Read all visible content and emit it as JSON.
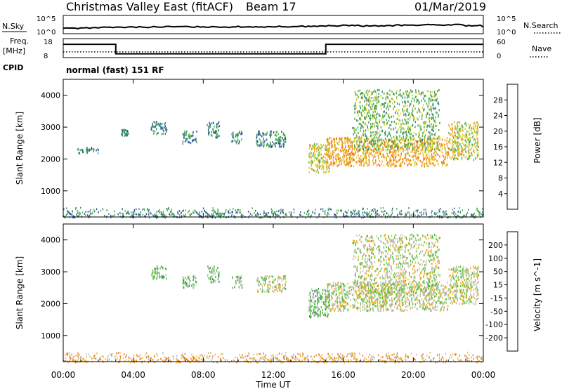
{
  "header": {
    "radar": "Christmas Valley East (fitACF)",
    "beam": "Beam 17",
    "date": "01/Mar/2019"
  },
  "mode_label": "normal (fast) 151 RF",
  "noise_panel": {
    "left_label": "N.Sky",
    "right_label": "N.Search",
    "left_ticks": [
      "10^5",
      "10^0"
    ],
    "right_ticks": [
      "10^5",
      "10^0"
    ]
  },
  "freq_panel": {
    "left_label_1": "Freq.",
    "left_label_2": "[MHz]",
    "cpid_label": "CPID",
    "right_label": "Nave",
    "left_ticks": [
      "18",
      "8"
    ],
    "right_ticks": [
      "60",
      "0"
    ]
  },
  "xaxis": {
    "label": "Time UT",
    "ticks": [
      "00:00",
      "04:00",
      "08:00",
      "12:00",
      "16:00",
      "20:00",
      "00:00"
    ]
  },
  "chart_data": [
    {
      "type": "heatmap",
      "name": "power",
      "ylabel": "Slant Range [km]",
      "ylim": [
        180,
        4500
      ],
      "yticks": [
        1000,
        2000,
        3000,
        4000
      ],
      "colorbar_label": "Power [dB]",
      "colorbar_ticks": [
        "4",
        "8",
        "12",
        "16",
        "20",
        "24",
        "28"
      ],
      "colorbar_range": [
        0,
        32
      ],
      "colors": [
        "#0a1ff0",
        "#2a4aaa",
        "#3c8c6a",
        "#48b048",
        "#d9d22a",
        "#f0a020",
        "#f07010",
        "#e81010"
      ],
      "regions": [
        {
          "t0": 0.8,
          "t1": 2.0,
          "r0": 2200,
          "r1": 2400,
          "level": 2
        },
        {
          "t0": 3.3,
          "t1": 3.7,
          "r0": 2750,
          "r1": 2950,
          "level": 2
        },
        {
          "t0": 5.0,
          "t1": 5.9,
          "r0": 2800,
          "r1": 3200,
          "level": 2
        },
        {
          "t0": 6.8,
          "t1": 7.6,
          "r0": 2500,
          "r1": 2900,
          "level": 2
        },
        {
          "t0": 8.2,
          "t1": 8.9,
          "r0": 2700,
          "r1": 3200,
          "level": 2
        },
        {
          "t0": 9.6,
          "t1": 10.2,
          "r0": 2500,
          "r1": 2900,
          "level": 2
        },
        {
          "t0": 11.0,
          "t1": 12.7,
          "r0": 2400,
          "r1": 2900,
          "level": 2
        },
        {
          "t0": 14.0,
          "t1": 15.2,
          "r0": 1600,
          "r1": 2500,
          "level": 4
        },
        {
          "t0": 15.0,
          "t1": 22.0,
          "r0": 1800,
          "r1": 2700,
          "level": 5
        },
        {
          "t0": 16.5,
          "t1": 21.5,
          "r0": 2300,
          "r1": 4200,
          "level": 3
        },
        {
          "t0": 22.0,
          "t1": 23.7,
          "r0": 2000,
          "r1": 3200,
          "level": 4
        }
      ],
      "ground": {
        "r0": 180,
        "r1": 500,
        "level": 2
      }
    },
    {
      "type": "heatmap",
      "name": "velocity",
      "ylabel": "Slant Range [km]",
      "ylim": [
        180,
        4500
      ],
      "yticks": [
        1000,
        2000,
        3000,
        4000
      ],
      "colorbar_label": "Velocity [m s^-1]",
      "colorbar_ticks": [
        "200",
        "100",
        "50",
        "15",
        "-15",
        "-50",
        "-100",
        "-200"
      ],
      "colorbar_range": [
        -250,
        250
      ],
      "colors": [
        "#1030c0",
        "#2a5ab0",
        "#3a8e5a",
        "#4cc030",
        "#bdbdb5",
        "#f0b020",
        "#f07010",
        "#e81010"
      ],
      "regions": [
        {
          "t0": 5.0,
          "t1": 5.9,
          "r0": 2800,
          "r1": 3200,
          "level": 3
        },
        {
          "t0": 6.8,
          "t1": 7.6,
          "r0": 2500,
          "r1": 2900,
          "level": 3
        },
        {
          "t0": 8.2,
          "t1": 8.9,
          "r0": 2700,
          "r1": 3200,
          "level": 3
        },
        {
          "t0": 9.6,
          "t1": 10.2,
          "r0": 2500,
          "r1": 2900,
          "level": 3
        },
        {
          "t0": 11.0,
          "t1": 12.7,
          "r0": 2400,
          "r1": 2900,
          "level": 4
        },
        {
          "t0": 14.0,
          "t1": 15.2,
          "r0": 1600,
          "r1": 2500,
          "level": 3
        },
        {
          "t0": 15.0,
          "t1": 22.0,
          "r0": 1800,
          "r1": 2700,
          "level": 4
        },
        {
          "t0": 16.5,
          "t1": 21.5,
          "r0": 2300,
          "r1": 4200,
          "level": 4
        },
        {
          "t0": 22.0,
          "t1": 23.7,
          "r0": 2000,
          "r1": 3200,
          "level": 4
        }
      ],
      "ground": {
        "r0": 180,
        "r1": 500,
        "level": 5
      }
    },
    {
      "type": "line",
      "name": "noise",
      "x": [
        0,
        1,
        2,
        3,
        4,
        5,
        6,
        7,
        8,
        9,
        10,
        11,
        12,
        13,
        14,
        15,
        16,
        17,
        18,
        19,
        20,
        21,
        22,
        23,
        24
      ],
      "values": [
        0.3,
        0.32,
        0.34,
        0.35,
        0.36,
        0.37,
        0.38,
        0.38,
        0.38,
        0.37,
        0.38,
        0.38,
        0.39,
        0.4,
        0.41,
        0.43,
        0.45,
        0.42,
        0.44,
        0.46,
        0.48,
        0.47,
        0.49,
        0.44,
        0.36
      ]
    },
    {
      "type": "line",
      "name": "frequency",
      "x": [
        0,
        3,
        3,
        15,
        15,
        24
      ],
      "values": [
        15,
        15,
        10,
        10,
        15,
        15
      ],
      "nave_level": 11
    }
  ]
}
